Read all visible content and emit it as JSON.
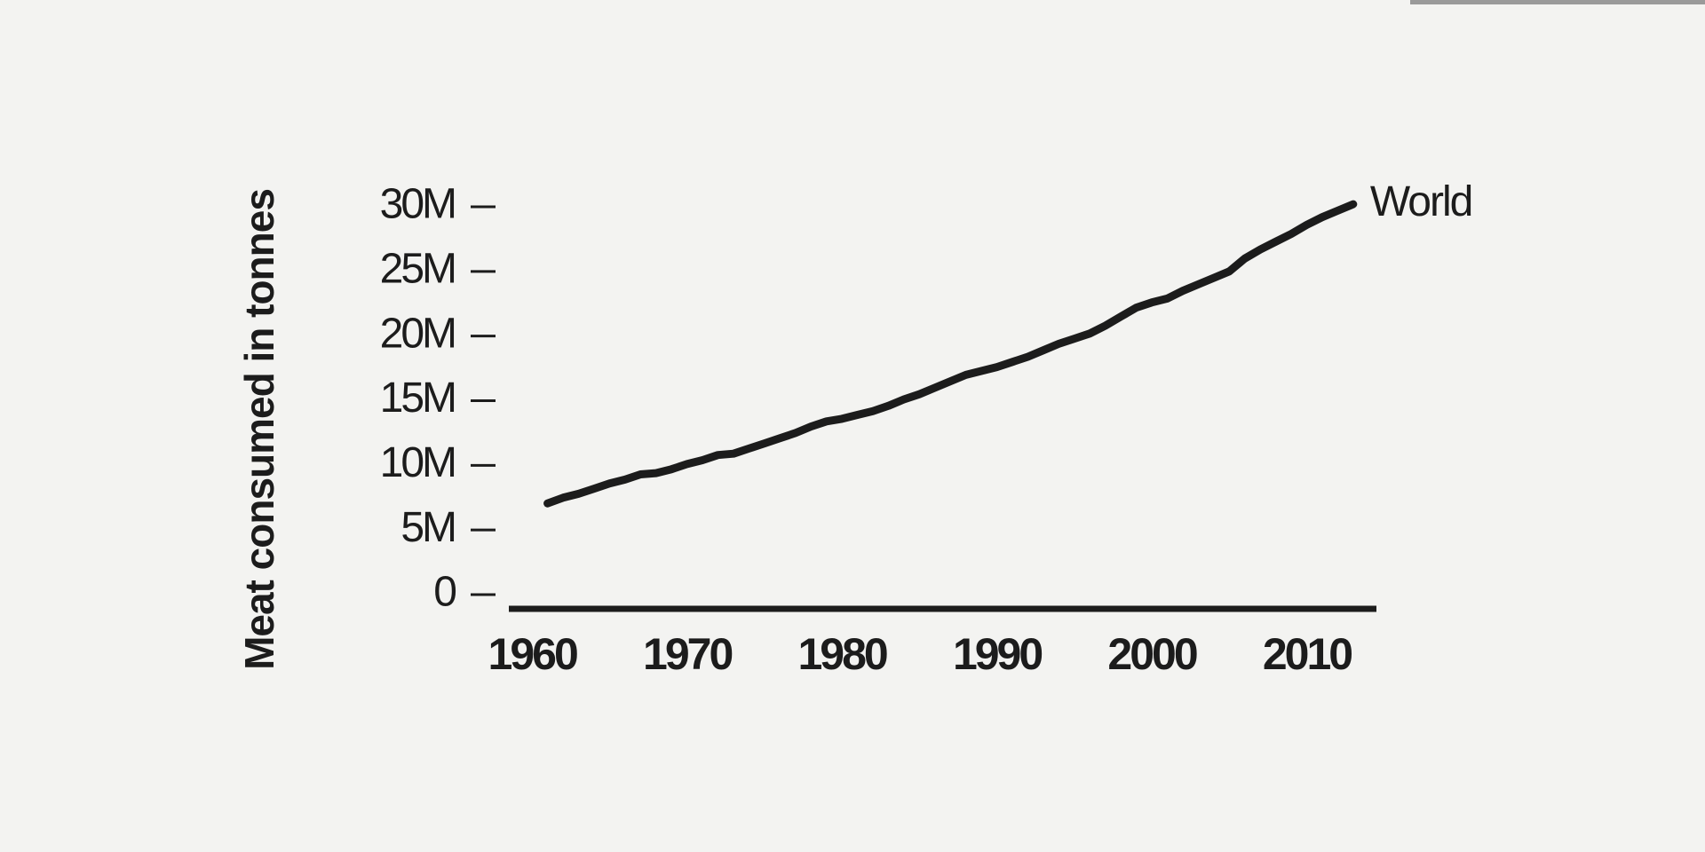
{
  "chart_data": {
    "type": "line",
    "y_label": "Meat consumed in tonnes",
    "x": [
      1961,
      1962,
      1963,
      1964,
      1965,
      1966,
      1967,
      1968,
      1969,
      1970,
      1971,
      1972,
      1973,
      1974,
      1975,
      1976,
      1977,
      1978,
      1979,
      1980,
      1981,
      1982,
      1983,
      1984,
      1985,
      1986,
      1987,
      1988,
      1989,
      1990,
      1991,
      1992,
      1993,
      1994,
      1995,
      1996,
      1997,
      1998,
      1999,
      2000,
      2001,
      2002,
      2003,
      2004,
      2005,
      2006,
      2007,
      2008,
      2009,
      2010,
      2011,
      2012,
      2013
    ],
    "series": [
      {
        "name": "World",
        "color": "#1c1c1c",
        "values": [
          7060000,
          7500000,
          7800000,
          8200000,
          8600000,
          8900000,
          9300000,
          9400000,
          9700000,
          10100000,
          10400000,
          10800000,
          10900000,
          11300000,
          11700000,
          12100000,
          12500000,
          13000000,
          13400000,
          13600000,
          13900000,
          14200000,
          14600000,
          15100000,
          15500000,
          16000000,
          16500000,
          17000000,
          17300000,
          17600000,
          18000000,
          18400000,
          18900000,
          19400000,
          19800000,
          20200000,
          20800000,
          21500000,
          22200000,
          22600000,
          22900000,
          23500000,
          24000000,
          24500000,
          25000000,
          26000000,
          26700000,
          27300000,
          27900000,
          28600000,
          29200000,
          29700000,
          30200000
        ]
      }
    ],
    "xlim": [
      1958.5,
      2014.5
    ],
    "xticks": [
      1960,
      1970,
      1980,
      1990,
      2000,
      2010
    ],
    "ylim": [
      0,
      30000000
    ],
    "yticks": [
      0,
      {
        "value": 5000000,
        "label": "5M"
      },
      {
        "value": 10000000,
        "label": "10M"
      },
      {
        "value": 15000000,
        "label": "15M"
      },
      {
        "value": 20000000,
        "label": "20M"
      },
      {
        "value": 25000000,
        "label": "25M"
      },
      {
        "value": 30000000,
        "label": "30M"
      }
    ],
    "grid": false
  }
}
